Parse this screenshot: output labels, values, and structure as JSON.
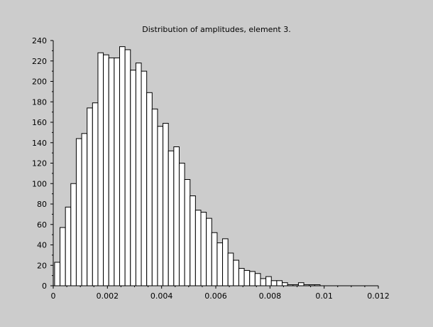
{
  "chart_data": {
    "type": "bar",
    "title": "Distribution of amplitudes, element 3.",
    "xlabel": "",
    "ylabel": "",
    "xlim": [
      0,
      0.012
    ],
    "ylim": [
      0,
      240
    ],
    "grid": false,
    "x_ticks": [
      0,
      0.002,
      0.004,
      0.006,
      0.008,
      0.01,
      0.012
    ],
    "x_tick_labels": [
      "0",
      "0.002",
      "0.004",
      "0.006",
      "0.008",
      "0.01",
      "0.012"
    ],
    "y_ticks": [
      0,
      20,
      40,
      60,
      80,
      100,
      120,
      140,
      160,
      180,
      200,
      220,
      240
    ],
    "y_tick_labels": [
      "0",
      "20",
      "40",
      "60",
      "80",
      "100",
      "120",
      "140",
      "160",
      "180",
      "200",
      "220",
      "240"
    ],
    "bin_start": 5e-05,
    "bin_width": 0.0002,
    "values": [
      23,
      57,
      77,
      100,
      144,
      149,
      174,
      179,
      228,
      226,
      223,
      223,
      234,
      231,
      211,
      218,
      210,
      189,
      173,
      156,
      159,
      132,
      136,
      120,
      104,
      88,
      74,
      72,
      66,
      52,
      42,
      46,
      32,
      25,
      17,
      15,
      14,
      12,
      7,
      9,
      5,
      5,
      3,
      1,
      1,
      3,
      1,
      1,
      1,
      0,
      0,
      0
    ],
    "colors": {
      "bar_fill": "#ffffff",
      "bar_stroke": "#000000",
      "background": "#cccccc",
      "axis": "#000000"
    }
  }
}
